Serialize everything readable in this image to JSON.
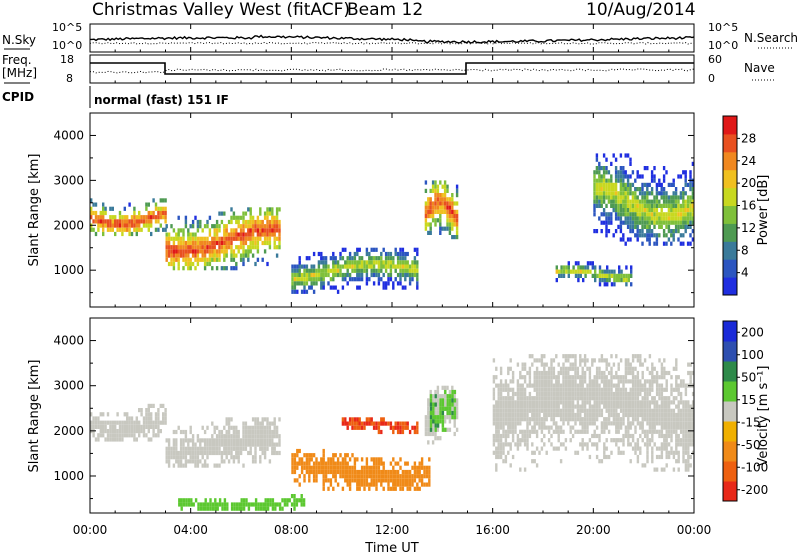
{
  "header": {
    "station": "Christmas Valley West (fitACF)",
    "beam": "Beam 12",
    "date": "10/Aug/2014"
  },
  "noise_panel": {
    "left_label": "N.Sky",
    "left_ticks": [
      "10^5",
      "10^0"
    ],
    "right_ticks": [
      "10^5",
      "10^0"
    ],
    "right_label": "N.Search"
  },
  "freq_panel": {
    "left_label_1": "Freq.",
    "left_label_2": "[MHz]",
    "left_ticks": [
      "18",
      "8"
    ],
    "right_ticks": [
      "60",
      "0"
    ],
    "right_label": "Nave"
  },
  "cpid_panel": {
    "label": "CPID",
    "text": "normal (fast) 151 IF"
  },
  "colors": {
    "power": [
      "#1f2ee0",
      "#2b55c0",
      "#3a7a9a",
      "#4e9a52",
      "#7fc03a",
      "#c8d820",
      "#f0c020",
      "#f08820",
      "#e85020",
      "#e01818"
    ],
    "velocity": [
      "#1a2ad8",
      "#2e4fb0",
      "#2e8a4a",
      "#5cc830",
      "#c8c8c0",
      "#f0b000",
      "#f08a18",
      "#ee6010",
      "#e82818"
    ]
  },
  "chart_data": [
    {
      "type": "heatmap",
      "name": "power",
      "xlabel": "",
      "ylabel": "Slant Range [km]",
      "xlim": [
        "00:00",
        "24:00"
      ],
      "ylim": [
        180,
        4500
      ],
      "y_ticks": [
        "1000",
        "2000",
        "3000",
        "4000"
      ],
      "colorbar": {
        "label": "Power [dB]",
        "ticks": [
          "4",
          "8",
          "12",
          "16",
          "20",
          "24",
          "28"
        ],
        "range": [
          0,
          30
        ]
      },
      "features": [
        {
          "t": [
            0.0,
            3.0
          ],
          "r": [
            1800,
            2600
          ],
          "level": "high"
        },
        {
          "t": [
            3.0,
            7.5
          ],
          "r": [
            1000,
            2400
          ],
          "level": "high"
        },
        {
          "t": [
            8.0,
            13.0
          ],
          "r": [
            500,
            1500
          ],
          "level": "medium"
        },
        {
          "t": [
            13.3,
            14.6
          ],
          "r": [
            1700,
            3000
          ],
          "level": "high"
        },
        {
          "t": [
            18.5,
            21.5
          ],
          "r": [
            700,
            1200
          ],
          "level": "medium"
        },
        {
          "t": [
            20.0,
            24.0
          ],
          "r": [
            1600,
            3600
          ],
          "level": "medium"
        }
      ]
    },
    {
      "type": "heatmap",
      "name": "velocity",
      "xlabel": "Time UT",
      "ylabel": "Slant Range [km]",
      "xlim": [
        "00:00",
        "24:00"
      ],
      "ylim": [
        180,
        4500
      ],
      "x_ticks": [
        "00:00",
        "04:00",
        "08:00",
        "12:00",
        "16:00",
        "20:00",
        "00:00"
      ],
      "y_ticks": [
        "1000",
        "2000",
        "3000",
        "4000"
      ],
      "colorbar": {
        "label": "Velocity [m s⁻¹]",
        "ticks": [
          "200",
          "100",
          "50",
          "15",
          "-15",
          "-50",
          "-100",
          "-200"
        ]
      },
      "features": [
        {
          "t": [
            10.0,
            13.0
          ],
          "r": [
            2000,
            2300
          ],
          "velocity": -200
        },
        {
          "t": [
            8.0,
            13.5
          ],
          "r": [
            700,
            1600
          ],
          "velocity": -70
        },
        {
          "t": [
            3.5,
            8.5
          ],
          "r": [
            300,
            600
          ],
          "velocity": 30
        },
        {
          "t": [
            13.5,
            14.5
          ],
          "r": [
            2000,
            3000
          ],
          "velocity": 40
        }
      ]
    }
  ]
}
